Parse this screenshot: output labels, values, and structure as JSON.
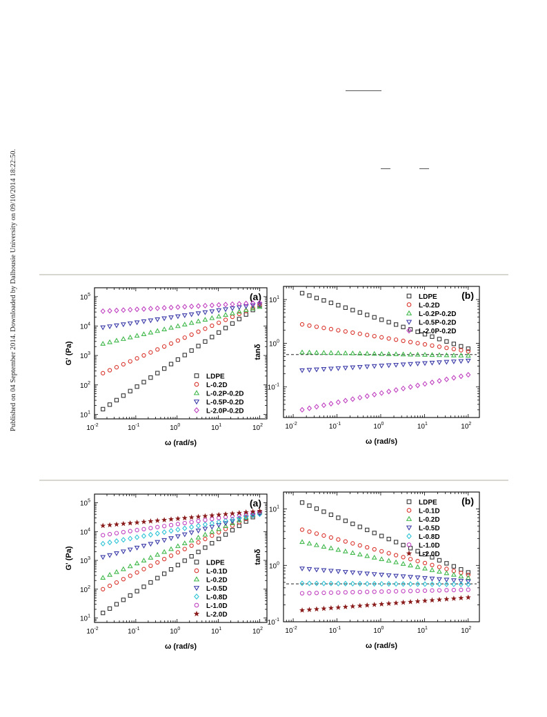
{
  "sidebar_text": "Published on 04 September 2014. Downloaded by Dalhousie University on 09/10/2014 18:22:50.",
  "colors": {
    "LDPE": "#333333",
    "L-0.1D": "#d9332b",
    "L-0.2D": "#d9332b",
    "L-0.2P-0.2D": "#3fb84a",
    "L-0.5P-0.2D": "#3a3aa8",
    "L-2.0P-0.2D": "#c040c0",
    "L-0.5D": "#3a3aa8",
    "L-0.8D": "#2ec4d6",
    "L-1.0D": "#c040c0",
    "L-2.0D": "#8a1c1c"
  },
  "figures": [
    {
      "panels": [
        {
          "panel_label": "(a)",
          "chart_data": {
            "type": "scatter",
            "xlabel": "ω (rad/s)",
            "ylabel": "G' (Pa)",
            "xscale": "log",
            "yscale": "log",
            "xlim": [
              0.01,
              150
            ],
            "ylim": [
              7,
              200000
            ],
            "xticks": [
              {
                "v": 0.01,
                "e": "-2"
              },
              {
                "v": 0.1,
                "e": "-1"
              },
              {
                "v": 1,
                "e": "0"
              },
              {
                "v": 10,
                "e": "1"
              },
              {
                "v": 100,
                "e": "2"
              }
            ],
            "yticks": [
              {
                "v": 10,
                "e": "1"
              },
              {
                "v": 100,
                "e": "2"
              },
              {
                "v": 1000,
                "e": "3"
              },
              {
                "v": 10000,
                "e": "4"
              },
              {
                "v": 100000,
                "e": "5"
              }
            ],
            "legend_position": "bottom-right",
            "series": [
              {
                "name": "LDPE",
                "marker": "square",
                "color_key": "LDPE",
                "x_range": [
                  0.016,
                  100
                ],
                "y_range": [
                  15,
                  50000
                ]
              },
              {
                "name": "L-0.2D",
                "marker": "circle",
                "color_key": "L-0.2D",
                "x_range": [
                  0.016,
                  100
                ],
                "y_range": [
                  250,
                  52000
                ]
              },
              {
                "name": "L-0.2P-0.2D",
                "marker": "triangle-up",
                "color_key": "L-0.2P-0.2D",
                "x_range": [
                  0.016,
                  100
                ],
                "y_range": [
                  2500,
                  45000
                ]
              },
              {
                "name": "L-0.5P-0.2D",
                "marker": "triangle-down",
                "color_key": "L-0.5P-0.2D",
                "x_range": [
                  0.016,
                  100
                ],
                "y_range": [
                  9000,
                  55000
                ]
              },
              {
                "name": "L-2.0P-0.2D",
                "marker": "diamond",
                "color_key": "L-2.0P-0.2D",
                "x_range": [
                  0.016,
                  100
                ],
                "y_range": [
                  32000,
                  62000
                ]
              }
            ]
          }
        },
        {
          "panel_label": "(b)",
          "chart_data": {
            "type": "scatter",
            "xlabel": "ω (rad/s)",
            "ylabel": "tanδ",
            "xscale": "log",
            "yscale": "log",
            "xlim": [
              0.006,
              180
            ],
            "ylim": [
              0.02,
              20
            ],
            "xticks": [
              {
                "v": 0.01,
                "e": "-2"
              },
              {
                "v": 0.1,
                "e": "-1"
              },
              {
                "v": 1,
                "e": "0"
              },
              {
                "v": 10,
                "e": "1"
              },
              {
                "v": 100,
                "e": "2"
              }
            ],
            "yticks": [
              {
                "v": 0.1,
                "e": "-1"
              },
              {
                "v": 1,
                "e": "0"
              },
              {
                "v": 10,
                "e": "1"
              }
            ],
            "reference_line_y": 0.55,
            "legend_position": "top-right",
            "series": [
              {
                "name": "LDPE",
                "marker": "square",
                "color_key": "LDPE",
                "x_range": [
                  0.016,
                  100
                ],
                "y_range": [
                  14,
                  0.75
                ]
              },
              {
                "name": "L-0.2D",
                "marker": "circle",
                "color_key": "L-0.2D",
                "x_range": [
                  0.016,
                  100
                ],
                "y_range": [
                  2.7,
                  0.65
                ]
              },
              {
                "name": "L-0.2P-0.2D",
                "marker": "triangle-up",
                "color_key": "L-0.2P-0.2D",
                "x_range": [
                  0.016,
                  100
                ],
                "y_range": [
                  0.62,
                  0.52
                ]
              },
              {
                "name": "L-0.5P-0.2D",
                "marker": "triangle-down",
                "color_key": "L-0.5P-0.2D",
                "x_range": [
                  0.016,
                  100
                ],
                "y_range": [
                  0.24,
                  0.4
                ]
              },
              {
                "name": "L-2.0P-0.2D",
                "marker": "diamond",
                "color_key": "L-2.0P-0.2D",
                "x_range": [
                  0.016,
                  100
                ],
                "y_range": [
                  0.03,
                  0.19
                ]
              }
            ]
          }
        }
      ]
    },
    {
      "panels": [
        {
          "panel_label": "(a)",
          "chart_data": {
            "type": "scatter",
            "xlabel": "ω (rad/s)",
            "ylabel": "G' (Pa)",
            "xscale": "log",
            "yscale": "log",
            "xlim": [
              0.01,
              150
            ],
            "ylim": [
              7,
              200000
            ],
            "xticks": [
              {
                "v": 0.01,
                "e": "-2"
              },
              {
                "v": 0.1,
                "e": "-1"
              },
              {
                "v": 1,
                "e": "0"
              },
              {
                "v": 10,
                "e": "1"
              },
              {
                "v": 100,
                "e": "2"
              }
            ],
            "yticks": [
              {
                "v": 10,
                "e": "1"
              },
              {
                "v": 100,
                "e": "2"
              },
              {
                "v": 1000,
                "e": "3"
              },
              {
                "v": 10000,
                "e": "4"
              },
              {
                "v": 100000,
                "e": "5"
              }
            ],
            "legend_position": "bottom-right",
            "series": [
              {
                "name": "LDPE",
                "marker": "square",
                "color_key": "LDPE",
                "x_range": [
                  0.016,
                  100
                ],
                "y_range": [
                  15,
                  45000
                ]
              },
              {
                "name": "L-0.1D",
                "marker": "circle",
                "color_key": "L-0.1D",
                "x_range": [
                  0.016,
                  100
                ],
                "y_range": [
                  100,
                  47000
                ]
              },
              {
                "name": "L-0.2D",
                "marker": "triangle-up",
                "color_key": "L-0.2P-0.2D",
                "x_range": [
                  0.016,
                  100
                ],
                "y_range": [
                  250,
                  49000
                ]
              },
              {
                "name": "L-0.5D",
                "marker": "triangle-down",
                "color_key": "L-0.5D",
                "x_range": [
                  0.016,
                  100
                ],
                "y_range": [
                  1300,
                  42000
                ]
              },
              {
                "name": "L-0.8D",
                "marker": "diamond",
                "color_key": "L-0.8D",
                "x_range": [
                  0.016,
                  100
                ],
                "y_range": [
                  3800,
                  40000
                ]
              },
              {
                "name": "L-1.0D",
                "marker": "circle",
                "color_key": "L-1.0D",
                "x_range": [
                  0.016,
                  100
                ],
                "y_range": [
                  7500,
                  48000
                ]
              },
              {
                "name": "L-2.0D",
                "marker": "star",
                "color_key": "L-2.0D",
                "x_range": [
                  0.016,
                  100
                ],
                "y_range": [
                  16000,
                  52000
                ]
              }
            ]
          }
        },
        {
          "panel_label": "(b)",
          "chart_data": {
            "type": "scatter",
            "xlabel": "ω (rad/s)",
            "ylabel": "tanδ",
            "xscale": "log",
            "yscale": "log",
            "xlim": [
              0.006,
              180
            ],
            "ylim": [
              0.1,
              20
            ],
            "xticks": [
              {
                "v": 0.01,
                "e": "-2"
              },
              {
                "v": 0.1,
                "e": "-1"
              },
              {
                "v": 1,
                "e": "0"
              },
              {
                "v": 10,
                "e": "1"
              },
              {
                "v": 100,
                "e": "2"
              }
            ],
            "yticks": [
              {
                "v": 0.1,
                "e": "-1"
              },
              {
                "v": 1,
                "e": "0"
              },
              {
                "v": 10,
                "e": "1"
              }
            ],
            "reference_line_y": 0.47,
            "legend_position": "top-right",
            "series": [
              {
                "name": "LDPE",
                "marker": "square",
                "color_key": "LDPE",
                "x_range": [
                  0.016,
                  100
                ],
                "y_range": [
                  13,
                  0.75
                ]
              },
              {
                "name": "L-0.1D",
                "marker": "circle",
                "color_key": "L-0.1D",
                "x_range": [
                  0.016,
                  100
                ],
                "y_range": [
                  4.3,
                  0.68
                ]
              },
              {
                "name": "L-0.2D",
                "marker": "triangle-up",
                "color_key": "L-0.2P-0.2D",
                "x_range": [
                  0.016,
                  100
                ],
                "y_range": [
                  2.6,
                  0.6
                ]
              },
              {
                "name": "L-0.5D",
                "marker": "triangle-down",
                "color_key": "L-0.5D",
                "x_range": [
                  0.016,
                  100
                ],
                "y_range": [
                  0.88,
                  0.52
                ]
              },
              {
                "name": "L-0.8D",
                "marker": "diamond",
                "color_key": "L-0.8D",
                "x_range": [
                  0.016,
                  100
                ],
                "y_range": [
                  0.48,
                  0.46
                ]
              },
              {
                "name": "L-1.0D",
                "marker": "circle",
                "color_key": "L-1.0D",
                "x_range": [
                  0.016,
                  100
                ],
                "y_range": [
                  0.32,
                  0.37
                ]
              },
              {
                "name": "L-2.0D",
                "marker": "star",
                "color_key": "L-2.0D",
                "x_range": [
                  0.016,
                  100
                ],
                "y_range": [
                  0.16,
                  0.27
                ]
              }
            ]
          }
        }
      ]
    }
  ]
}
